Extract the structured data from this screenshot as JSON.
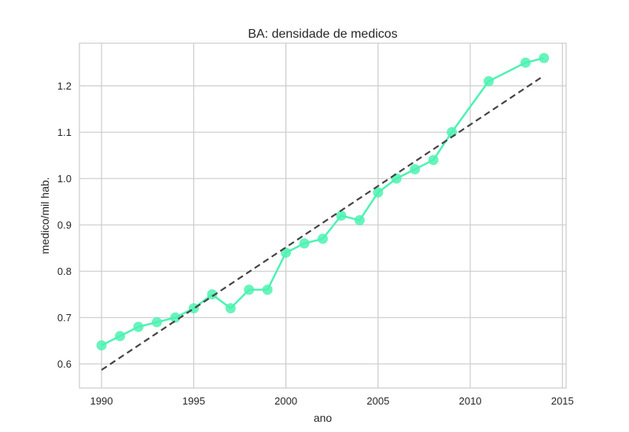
{
  "chart_data": {
    "type": "line",
    "title": "BA: densidade de medicos",
    "xlabel": "ano",
    "ylabel": "medico/mil hab.",
    "xlim": [
      1988.8,
      2015.2
    ],
    "ylim": [
      0.548,
      1.292
    ],
    "xticks": [
      1990,
      1995,
      2000,
      2005,
      2010,
      2015
    ],
    "yticks": [
      0.6,
      0.7,
      0.8,
      0.9,
      1.0,
      1.1,
      1.2
    ],
    "xtick_labels": [
      "1990",
      "1995",
      "2000",
      "2005",
      "2010",
      "2015"
    ],
    "ytick_labels": [
      "0.6",
      "0.7",
      "0.8",
      "0.9",
      "1.0",
      "1.1",
      "1.2"
    ],
    "grid": true,
    "series": [
      {
        "style": "line-markers",
        "color": "#4ef2b2",
        "x": [
          1990,
          1991,
          1992,
          1993,
          1994,
          1995,
          1996,
          1997,
          1998,
          1999,
          2000,
          2001,
          2002,
          2003,
          2004,
          2005,
          2006,
          2007,
          2008,
          2009,
          2011,
          2013,
          2014
        ],
        "y": [
          0.64,
          0.66,
          0.68,
          0.69,
          0.7,
          0.72,
          0.75,
          0.72,
          0.76,
          0.76,
          0.84,
          0.86,
          0.87,
          0.92,
          0.91,
          0.97,
          1.0,
          1.02,
          1.04,
          1.1,
          1.21,
          1.25,
          1.26
        ]
      },
      {
        "style": "dashed-trend",
        "color": "#444444",
        "x": [
          1990,
          2014
        ],
        "y": [
          0.587,
          1.222
        ]
      }
    ]
  }
}
